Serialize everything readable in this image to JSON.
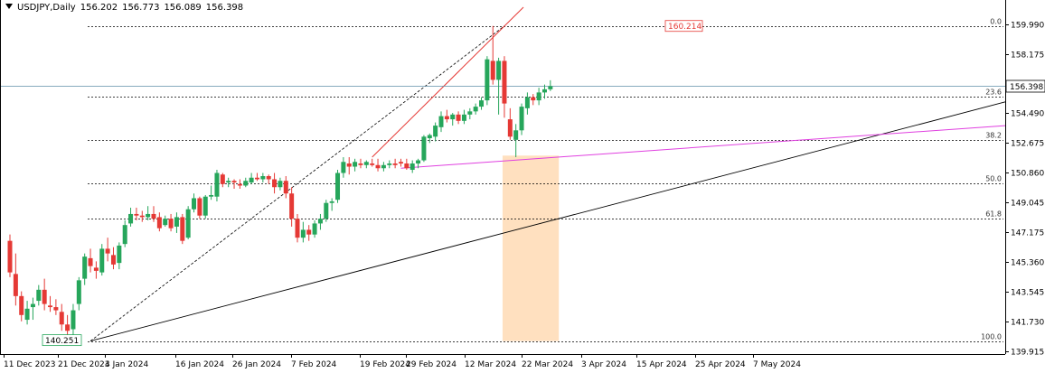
{
  "header": {
    "symbol": "USDJPY,Daily",
    "open": "156.202",
    "high": "156.773",
    "low": "156.089",
    "close": "156.398"
  },
  "colors": {
    "bull": "#26a65b",
    "bear": "#e53935",
    "grid": "#000000",
    "trendline": "#000000",
    "magenta": "#e040e0",
    "red_line": "#e53935",
    "zone": "#ffe0bf",
    "price_line": "#5f8fa8"
  },
  "chart_data": {
    "type": "candlestick",
    "y_ticks": [
      "159.990",
      "158.175",
      "156.360",
      "154.490",
      "152.675",
      "150.860",
      "149.045",
      "147.175",
      "145.360",
      "143.545",
      "141.730",
      "139.915"
    ],
    "y_range": [
      139.6,
      161.4
    ],
    "x_labels": [
      "11 Dec 2023",
      "21 Dec 2023",
      "4 Jan 2024",
      "16 Jan 2024",
      "26 Jan 2024",
      "7 Feb 2024",
      "19 Feb 2024",
      "29 Feb 2024",
      "12 Mar 2024",
      "22 Mar 2024",
      "3 Apr 2024",
      "15 Apr 2024",
      "25 Apr 2024",
      "7 May 2024"
    ],
    "current_price": "156.398",
    "fib_levels": [
      {
        "label": "0.0",
        "price": 160.214
      },
      {
        "label": "23.6",
        "price": 155.72
      },
      {
        "label": "38.2",
        "price": 152.98
      },
      {
        "label": "50.0",
        "price": 150.25
      },
      {
        "label": "61.8",
        "price": 148.0
      },
      {
        "label": "100.0",
        "price": 140.251
      }
    ],
    "annotations": {
      "high_label": "160.214",
      "low_label": "140.251"
    },
    "candles": [
      [
        146.6,
        147.0,
        144.3,
        144.6
      ],
      [
        144.5,
        145.8,
        142.5,
        143.1
      ],
      [
        143.1,
        143.4,
        141.5,
        141.9
      ],
      [
        141.6,
        142.8,
        141.3,
        142.3
      ],
      [
        142.4,
        143.0,
        141.6,
        142.6
      ],
      [
        142.8,
        143.8,
        142.5,
        143.5
      ],
      [
        143.5,
        144.2,
        142.2,
        142.6
      ],
      [
        142.5,
        143.1,
        142.1,
        142.4
      ],
      [
        142.4,
        142.9,
        141.9,
        142.2
      ],
      [
        142.1,
        142.6,
        140.9,
        141.3
      ],
      [
        141.3,
        141.9,
        140.3,
        140.9
      ],
      [
        141.0,
        142.6,
        140.4,
        142.2
      ],
      [
        142.6,
        144.3,
        142.2,
        144.1
      ],
      [
        144.2,
        145.8,
        143.8,
        145.6
      ],
      [
        145.5,
        146.1,
        144.6,
        145.0
      ],
      [
        144.9,
        145.3,
        144.2,
        144.7
      ],
      [
        144.6,
        146.4,
        144.4,
        146.1
      ],
      [
        146.1,
        146.8,
        145.3,
        145.8
      ],
      [
        145.7,
        146.2,
        144.8,
        145.1
      ],
      [
        145.2,
        146.5,
        144.8,
        146.3
      ],
      [
        146.4,
        147.9,
        146.2,
        147.6
      ],
      [
        147.7,
        148.7,
        147.5,
        148.3
      ],
      [
        148.3,
        148.7,
        147.9,
        148.2
      ],
      [
        148.2,
        148.5,
        147.8,
        148.1
      ],
      [
        148.1,
        148.8,
        147.9,
        148.3
      ],
      [
        148.3,
        148.8,
        147.8,
        148.0
      ],
      [
        148.1,
        148.4,
        147.2,
        147.4
      ],
      [
        147.6,
        148.2,
        147.5,
        148.0
      ],
      [
        148.0,
        148.3,
        147.2,
        147.4
      ],
      [
        147.5,
        148.4,
        147.1,
        148.1
      ],
      [
        148.1,
        148.3,
        146.4,
        146.6
      ],
      [
        146.8,
        148.8,
        146.7,
        148.6
      ],
      [
        148.6,
        149.6,
        148.4,
        149.3
      ],
      [
        149.3,
        149.4,
        148.0,
        148.2
      ],
      [
        148.2,
        149.5,
        148.0,
        149.4
      ],
      [
        149.4,
        150.1,
        149.2,
        149.5
      ],
      [
        149.4,
        151.1,
        149.1,
        150.9
      ],
      [
        150.8,
        150.9,
        150.0,
        150.2
      ],
      [
        150.3,
        150.6,
        150.0,
        150.4
      ],
      [
        150.4,
        150.5,
        149.9,
        150.3
      ],
      [
        150.2,
        150.5,
        149.9,
        150.1
      ],
      [
        150.1,
        150.6,
        150.0,
        150.4
      ],
      [
        150.3,
        150.9,
        150.2,
        150.6
      ],
      [
        150.6,
        150.9,
        150.4,
        150.5
      ],
      [
        150.5,
        150.9,
        150.3,
        150.7
      ],
      [
        150.7,
        150.8,
        150.2,
        150.5
      ],
      [
        150.5,
        150.9,
        149.6,
        150.0
      ],
      [
        150.0,
        150.6,
        149.8,
        150.4
      ],
      [
        150.4,
        150.7,
        149.3,
        149.6
      ],
      [
        149.6,
        150.0,
        147.5,
        148.0
      ],
      [
        148.0,
        148.3,
        146.5,
        146.8
      ],
      [
        146.8,
        147.8,
        146.5,
        147.3
      ],
      [
        147.3,
        147.6,
        146.6,
        147.0
      ],
      [
        147.0,
        147.9,
        146.8,
        147.7
      ],
      [
        147.7,
        148.3,
        147.3,
        148.0
      ],
      [
        148.0,
        149.2,
        147.8,
        149.0
      ],
      [
        149.0,
        149.3,
        148.5,
        149.1
      ],
      [
        149.2,
        151.1,
        149.0,
        150.9
      ],
      [
        150.9,
        151.9,
        150.6,
        151.6
      ],
      [
        151.5,
        151.9,
        150.8,
        151.3
      ],
      [
        151.3,
        151.8,
        151.0,
        151.6
      ],
      [
        151.5,
        151.8,
        151.2,
        151.4
      ],
      [
        151.4,
        151.7,
        151.2,
        151.6
      ],
      [
        151.5,
        151.8,
        151.3,
        151.4
      ],
      [
        151.4,
        151.8,
        151.0,
        151.2
      ],
      [
        151.2,
        151.6,
        151.0,
        151.4
      ],
      [
        151.4,
        151.7,
        151.2,
        151.5
      ],
      [
        151.5,
        151.8,
        151.2,
        151.4
      ],
      [
        151.6,
        151.8,
        151.3,
        151.5
      ],
      [
        151.5,
        151.8,
        151.1,
        151.2
      ],
      [
        151.1,
        151.7,
        150.9,
        151.5
      ],
      [
        151.5,
        151.8,
        151.2,
        151.7
      ],
      [
        151.7,
        153.3,
        151.6,
        153.2
      ],
      [
        153.1,
        153.4,
        152.8,
        153.3
      ],
      [
        153.2,
        154.1,
        152.9,
        153.9
      ],
      [
        153.8,
        154.8,
        153.5,
        154.5
      ],
      [
        154.5,
        154.9,
        154.1,
        154.3
      ],
      [
        154.3,
        154.7,
        153.9,
        154.6
      ],
      [
        154.6,
        154.8,
        154.0,
        154.2
      ],
      [
        154.2,
        154.9,
        154.0,
        154.6
      ],
      [
        154.6,
        155.0,
        154.3,
        154.8
      ],
      [
        154.8,
        155.3,
        154.6,
        155.1
      ],
      [
        155.1,
        155.7,
        154.9,
        155.5
      ],
      [
        155.5,
        158.3,
        155.2,
        158.1
      ],
      [
        158.0,
        160.214,
        156.5,
        156.8
      ],
      [
        156.8,
        158.2,
        154.6,
        158.0
      ],
      [
        158.0,
        158.3,
        154.4,
        155.3
      ],
      [
        154.3,
        155.0,
        153.0,
        153.2
      ],
      [
        153.0,
        154.0,
        151.9,
        153.6
      ],
      [
        153.6,
        155.3,
        153.3,
        155.1
      ],
      [
        155.0,
        156.0,
        154.6,
        155.7
      ],
      [
        155.7,
        155.9,
        155.2,
        155.5
      ],
      [
        155.5,
        156.3,
        155.2,
        156.0
      ],
      [
        156.0,
        156.5,
        155.6,
        156.2
      ],
      [
        156.2,
        156.773,
        156.089,
        156.398
      ]
    ]
  }
}
